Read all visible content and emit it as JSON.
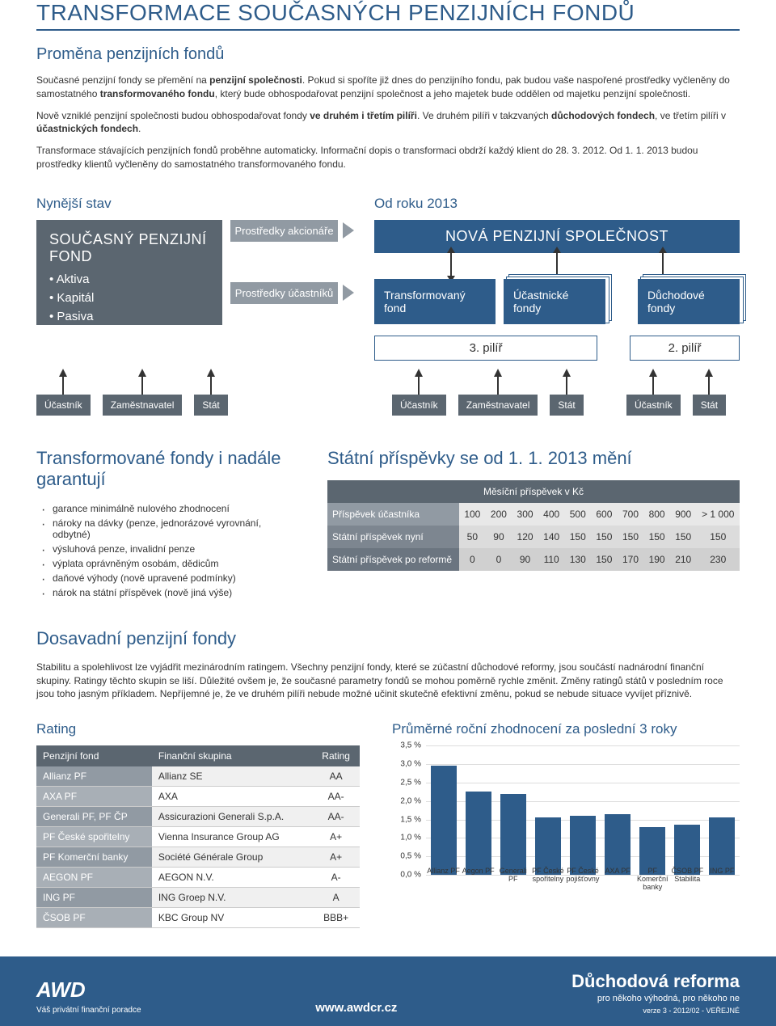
{
  "title": "TRANSFORMACE SOUČASNÝCH PENZIJNÍCH FONDŮ",
  "subtitle": "Proměna penzijních fondů",
  "para1_a": "Současné penzijní fondy se přemění na ",
  "para1_b": "penzijní společnosti",
  "para1_c": ". Pokud si spoříte již dnes do penzijního fondu, pak budou vaše naspořené prostředky vyčleněny do samostatného ",
  "para1_d": "transformovaného fondu",
  "para1_e": ", který bude obhospodařovat penzijní společnost a jeho majetek bude oddělen od majetku penzijní společnosti.",
  "para2_a": "Nově vzniklé penzijní společnosti budou obhospodařovat fondy ",
  "para2_b": "ve druhém i třetím pilíři",
  "para2_c": ". Ve druhém pilíři v takzvaných ",
  "para2_d": "důchodových fondech",
  "para2_e": ", ve třetím pilíři v ",
  "para2_f": "účastnických fondech",
  "para2_g": ".",
  "para3": "Transformace stávajících penzijních fondů proběhne automaticky. Informační dopis o transformaci obdrží každý klient do 28. 3. 2012. Od 1. 1. 2013 budou prostředky klientů vyčleněny do samostatného transformovaného fondu.",
  "diag": {
    "left_header": "Nynější stav",
    "right_header": "Od roku 2013",
    "current_title": "SOUČASNÝ PENZIJNÍ FOND",
    "current_items": [
      "Aktiva",
      "Kapitál",
      "Pasiva"
    ],
    "mid1": "Prostředky akcionáře",
    "mid2": "Prostředky účastníků",
    "nova": "NOVÁ PENZIJNÍ SPOLEČNOST",
    "fund1": "Transformovaný fond",
    "fund2": "Účastnické fondy",
    "fund3": "Důchodové fondy",
    "pillar3": "3. pilíř",
    "pillar2": "2. pilíř",
    "actors_left": [
      "Účastník",
      "Zaměstnavatel",
      "Stát"
    ],
    "actors_mid": [
      "Účastník",
      "Zaměstnavatel",
      "Stát"
    ],
    "actors_right": [
      "Účastník",
      "Stát"
    ]
  },
  "guarantee": {
    "title": "Transformované fondy i nadále garantují",
    "items": [
      "garance minimálně nulového zhodnocení",
      "nároky na dávky (penze, jednorázové vyrovnání, odbytné)",
      "výsluhová penze, invalidní penze",
      "výplata oprávněným osobám, dědicům",
      "daňové výhody (nově upravené podmínky)",
      "nárok na státní příspěvek (nově jiná výše)"
    ]
  },
  "contrib": {
    "title": "Státní příspěvky se od 1. 1. 2013 mění",
    "header": "Měsíční příspěvek v Kč",
    "row_labels": [
      "Příspěvek účastníka",
      "Státní příspěvek nyní",
      "Státní příspěvek po reformě"
    ],
    "cols": [
      "100",
      "200",
      "300",
      "400",
      "500",
      "600",
      "700",
      "800",
      "900",
      "> 1 000"
    ],
    "r1": [
      "50",
      "90",
      "120",
      "140",
      "150",
      "150",
      "150",
      "150",
      "150",
      "150"
    ],
    "r2": [
      "0",
      "0",
      "90",
      "110",
      "130",
      "150",
      "170",
      "190",
      "210",
      "230"
    ]
  },
  "existing": {
    "title": "Dosavadní penzijní fondy",
    "para": "Stabilitu a spolehlivost lze vyjádřit mezinárodním ratingem. Všechny penzijní fondy, které se zúčastní důchodové reformy, jsou součástí nadnárodní finanční skupiny. Ratingy těchto skupin se liší. Důležité ovšem je, že současné parametry fondů se mohou poměrně rychle změnit. Změny ratingů států v posledním roce jsou toho jasným příkladem.  Nepříjemné je, že ve druhém pilíři nebude možné učinit skutečně efektivní změnu, pokud se nebude situace vyvíjet příznivě."
  },
  "rating": {
    "title": "Rating",
    "headers": [
      "Penzijní fond",
      "Finanční skupina",
      "Rating"
    ],
    "rows": [
      [
        "Allianz PF",
        "Allianz SE",
        "AA"
      ],
      [
        "AXA PF",
        "AXA",
        "AA-"
      ],
      [
        "Generali PF, PF ČP",
        "Assicurazioni Generali S.p.A.",
        "AA-"
      ],
      [
        "PF České spořitelny",
        "Vienna Insurance Group AG",
        "A+"
      ],
      [
        "PF Komerční banky",
        "Société Générale Group",
        "A+"
      ],
      [
        "AEGON PF",
        "AEGON N.V.",
        "A-"
      ],
      [
        "ING PF",
        "ING Groep N.V.",
        "A"
      ],
      [
        "ČSOB PF",
        "KBC Group NV",
        "BBB+"
      ]
    ]
  },
  "chart": {
    "title": "Průměrné roční zhodnocení za poslední 3 roky",
    "ymax": 3.5,
    "ylabels": [
      "3,5 %",
      "3,0 %",
      "2,5 %",
      "2,0 %",
      "1,5 %",
      "1,0 %",
      "0,5 %",
      "0,0 %"
    ],
    "bars": [
      {
        "label": "Allianz PF",
        "value": 2.95
      },
      {
        "label": "Aegon PF",
        "value": 2.25
      },
      {
        "label": "Generali PF",
        "value": 2.2
      },
      {
        "label": "PF České spořitelny",
        "value": 1.55
      },
      {
        "label": "PF České pojišťovny",
        "value": 1.6
      },
      {
        "label": "AXA PF",
        "value": 1.65
      },
      {
        "label": "PF Komerční banky",
        "value": 1.3
      },
      {
        "label": "ČSOB PF Stabilita",
        "value": 1.35
      },
      {
        "label": "ING PF",
        "value": 1.55
      }
    ],
    "bar_color": "#2e5c8a"
  },
  "footer": {
    "logo": "AWD",
    "logo_sub": "Váš privátní finanční poradce",
    "url": "www.awdcr.cz",
    "right_title": "Důchodová reforma",
    "right_sub": "pro někoho výhodná, pro někoho ne",
    "right_ver": "verze 3 - 2012/02 - VEŘEJNÉ"
  }
}
